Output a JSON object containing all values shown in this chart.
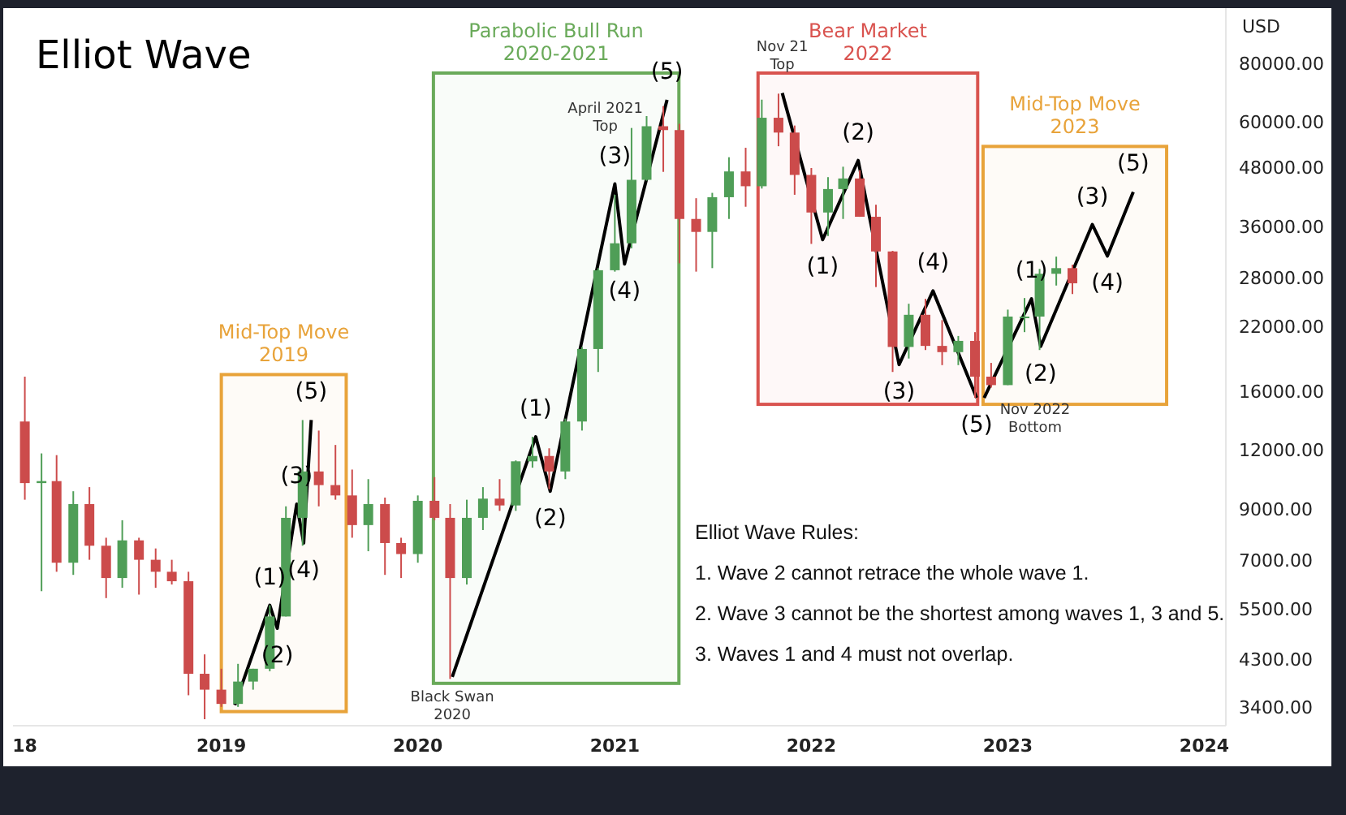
{
  "chart_data": {
    "type": "candlestick",
    "title": "Elliot Wave",
    "ylabel": "USD",
    "log": true,
    "grid": false,
    "xlim": [
      "2017-12-10",
      "2024-02-10"
    ],
    "xticks": [
      {
        "value": "2018",
        "label": "18"
      },
      "2019",
      "2020",
      "2021",
      "2022",
      "2023",
      "2024"
    ],
    "ylim": [
      3100,
      105000
    ],
    "yticks": [
      {
        "value": 3400,
        "label": "3400.00"
      },
      {
        "value": 4300,
        "label": "4300.00"
      },
      {
        "value": 5500,
        "label": "5500.00"
      },
      {
        "value": 7000,
        "label": "7000.00"
      },
      {
        "value": 9000,
        "label": "9000.00"
      },
      {
        "value": 12000,
        "label": "12000.00"
      },
      {
        "value": 16000,
        "label": "16000.00"
      },
      {
        "value": 22000,
        "label": "22000.00"
      },
      {
        "value": 28000,
        "label": "28000.00"
      },
      {
        "value": 36000,
        "label": "36000.00"
      },
      {
        "value": 48000,
        "label": "48000.00"
      },
      {
        "value": 60000,
        "label": "60000.00"
      },
      {
        "value": 80000,
        "label": "80000.00"
      }
    ],
    "x": [
      "2018-01",
      "2018-02",
      "2018-03",
      "2018-04",
      "2018-05",
      "2018-06",
      "2018-07",
      "2018-08",
      "2018-09",
      "2018-10",
      "2018-11",
      "2018-12",
      "2019-01",
      "2019-02",
      "2019-03",
      "2019-04",
      "2019-05",
      "2019-06",
      "2019-07",
      "2019-08",
      "2019-09",
      "2019-10",
      "2019-11",
      "2019-12",
      "2020-01",
      "2020-02",
      "2020-03",
      "2020-04",
      "2020-05",
      "2020-06",
      "2020-07",
      "2020-08",
      "2020-09",
      "2020-10",
      "2020-11",
      "2020-12",
      "2021-01",
      "2021-02",
      "2021-03",
      "2021-04",
      "2021-05",
      "2021-06",
      "2021-07",
      "2021-08",
      "2021-09",
      "2021-10",
      "2021-11",
      "2021-12",
      "2022-01",
      "2022-02",
      "2022-03",
      "2022-04",
      "2022-05",
      "2022-06",
      "2022-07",
      "2022-08",
      "2022-09",
      "2022-10",
      "2022-11",
      "2022-12",
      "2023-01",
      "2023-02",
      "2023-03",
      "2023-04",
      "2023-05"
    ],
    "ohlc": [
      [
        13800,
        17200,
        9400,
        10200
      ],
      [
        10200,
        11800,
        6000,
        10300
      ],
      [
        10300,
        11700,
        6600,
        6900
      ],
      [
        6900,
        9800,
        6500,
        9200
      ],
      [
        9200,
        10000,
        7000,
        7500
      ],
      [
        7500,
        7800,
        5800,
        6400
      ],
      [
        6400,
        8500,
        6100,
        7700
      ],
      [
        7700,
        7800,
        5900,
        7000
      ],
      [
        7000,
        7400,
        6100,
        6600
      ],
      [
        6600,
        7000,
        6200,
        6300
      ],
      [
        6300,
        6600,
        3600,
        4000
      ],
      [
        4000,
        4400,
        3200,
        3700
      ],
      [
        3700,
        4100,
        3400,
        3450
      ],
      [
        3450,
        4200,
        3400,
        3850
      ],
      [
        3850,
        4100,
        3700,
        4100
      ],
      [
        4100,
        5600,
        4050,
        5300
      ],
      [
        5300,
        9100,
        5300,
        8600
      ],
      [
        8600,
        13900,
        7500,
        10800
      ],
      [
        10800,
        13200,
        9100,
        10100
      ],
      [
        10100,
        12300,
        9400,
        9600
      ],
      [
        9600,
        10900,
        7800,
        8300
      ],
      [
        8300,
        10400,
        7300,
        9200
      ],
      [
        9200,
        9500,
        6500,
        7600
      ],
      [
        7600,
        7800,
        6400,
        7200
      ],
      [
        7200,
        9600,
        6900,
        9350
      ],
      [
        9350,
        10500,
        8500,
        8600
      ],
      [
        8600,
        9200,
        3900,
        6400
      ],
      [
        6400,
        9400,
        6200,
        8600
      ],
      [
        8600,
        10000,
        8100,
        9450
      ],
      [
        9450,
        10400,
        8900,
        9140
      ],
      [
        9140,
        11400,
        8900,
        11350
      ],
      [
        11350,
        12800,
        11000,
        11650
      ],
      [
        11650,
        12100,
        9900,
        10800
      ],
      [
        10800,
        14000,
        10400,
        13800
      ],
      [
        13800,
        19900,
        13200,
        19700
      ],
      [
        19700,
        29300,
        17600,
        29000
      ],
      [
        29000,
        42000,
        28800,
        33100
      ],
      [
        33100,
        58300,
        32300,
        45200
      ],
      [
        45200,
        61800,
        45000,
        58800
      ],
      [
        58800,
        64900,
        47000,
        57700
      ],
      [
        57700,
        59500,
        30000,
        37300
      ],
      [
        37300,
        41300,
        28800,
        35000
      ],
      [
        35000,
        42400,
        29300,
        41500
      ],
      [
        41500,
        50500,
        37300,
        47100
      ],
      [
        47100,
        52900,
        39600,
        43800
      ],
      [
        43800,
        67000,
        43300,
        61300
      ],
      [
        61300,
        69000,
        53300,
        57000
      ],
      [
        57000,
        59000,
        42000,
        46300
      ],
      [
        46300,
        47900,
        33000,
        38500
      ],
      [
        38500,
        45800,
        34300,
        43200
      ],
      [
        43200,
        48200,
        37300,
        45500
      ],
      [
        45500,
        47400,
        37700,
        37700
      ],
      [
        37700,
        40000,
        26700,
        31800
      ],
      [
        31800,
        31900,
        17600,
        19900
      ],
      [
        19900,
        24600,
        18800,
        23300
      ],
      [
        23300,
        25200,
        19600,
        20000
      ],
      [
        20000,
        22700,
        18200,
        19400
      ],
      [
        19400,
        21000,
        18200,
        20500
      ],
      [
        20500,
        21400,
        15500,
        17200
      ],
      [
        17200,
        18400,
        16300,
        16500
      ],
      [
        16500,
        23900,
        16500,
        23100
      ],
      [
        23100,
        25300,
        21400,
        23100
      ],
      [
        23100,
        29200,
        19600,
        28500
      ],
      [
        28500,
        31000,
        26900,
        29300
      ],
      [
        29300,
        29800,
        25800,
        27200
      ]
    ],
    "series": [
      {
        "type": "line",
        "color": "#000000",
        "x": [
          "2019-01-26",
          "2019-04-01",
          "2019-04-15",
          "2019-05-21",
          "2019-06-03",
          "2019-06-17"
        ],
        "values": [
          3430,
          5600,
          5000,
          9200,
          7600,
          13900
        ]
      },
      {
        "type": "line",
        "color": "#000000",
        "x": [
          "2020-03-05",
          "2020-08-07",
          "2020-09-03",
          "2021-01-01",
          "2021-01-19",
          "2021-04-08"
        ],
        "values": [
          3940,
          12800,
          9800,
          44300,
          29900,
          66900
        ]
      },
      {
        "type": "line",
        "color": "#000000",
        "x": [
          "2021-11-08",
          "2022-01-22",
          "2022-03-29",
          "2022-06-13",
          "2022-08-15",
          "2022-11-04"
        ],
        "values": [
          69200,
          33700,
          49700,
          18250,
          26200,
          15500
        ]
      },
      {
        "type": "line",
        "color": "#000000",
        "x": [
          "2022-11-18",
          "2023-02-14",
          "2023-03-03",
          "2023-06-07",
          "2023-07-05",
          "2023-08-22"
        ],
        "values": [
          15500,
          25200,
          19950,
          36300,
          31100,
          42600
        ]
      }
    ],
    "bands": [
      {
        "axis": "x",
        "from": "2019-01-01",
        "to": "2019-08-21",
        "label": "Mid-Top Move 2019",
        "color": "#e8a33a"
      },
      {
        "axis": "x",
        "from": "2020-01-30",
        "to": "2021-04-30",
        "label": "Parabolic Bull Run 2020-2021",
        "color": "#6aaa5a"
      },
      {
        "axis": "x",
        "from": "2021-09-24",
        "to": "2022-11-06",
        "label": "Bear Market 2022",
        "color": "#d9534f"
      },
      {
        "axis": "x",
        "from": "2022-11-16",
        "to": "2023-10-23",
        "label": "Mid-Top Move 2023",
        "color": "#e8a33a"
      }
    ],
    "annotations": [
      {
        "text": "(1)",
        "x": "2019-04-01",
        "y": 5600
      },
      {
        "text": "(2)",
        "x": "2019-04-15",
        "y": 5000
      },
      {
        "text": "(3)",
        "x": "2019-05-21",
        "y": 9200
      },
      {
        "text": "(4)",
        "x": "2019-06-03",
        "y": 7600
      },
      {
        "text": "(5)",
        "x": "2019-06-17",
        "y": 13900
      },
      {
        "text": "Black Swan 2020",
        "x": "2020-03-05",
        "y": 3940
      },
      {
        "text": "(1)",
        "x": "2020-08-07",
        "y": 12800
      },
      {
        "text": "(2)",
        "x": "2020-09-03",
        "y": 9800
      },
      {
        "text": "(3)",
        "x": "2021-01-01",
        "y": 44300
      },
      {
        "text": "(4)",
        "x": "2021-01-19",
        "y": 29900
      },
      {
        "text": "(5)",
        "x": "2021-04-08",
        "y": 66900
      },
      {
        "text": "April 2021 Top",
        "x": "2021-04-08",
        "y": 66900
      },
      {
        "text": "Nov 21 Top",
        "x": "2021-11-08",
        "y": 69200
      },
      {
        "text": "(1)",
        "x": "2022-01-22",
        "y": 33700
      },
      {
        "text": "(2)",
        "x": "2022-03-29",
        "y": 49700
      },
      {
        "text": "(3)",
        "x": "2022-06-13",
        "y": 18250
      },
      {
        "text": "(4)",
        "x": "2022-08-15",
        "y": 26200
      },
      {
        "text": "(5)",
        "x": "2022-11-04",
        "y": 15500
      },
      {
        "text": "Nov 2022 Bottom",
        "x": "2022-11-04",
        "y": 15500
      },
      {
        "text": "(1)",
        "x": "2023-02-14",
        "y": 25200
      },
      {
        "text": "(2)",
        "x": "2023-03-03",
        "y": 19950
      },
      {
        "text": "(3)",
        "x": "2023-06-07",
        "y": 36300
      },
      {
        "text": "(4)",
        "x": "2023-07-05",
        "y": 31100
      },
      {
        "text": "(5)",
        "x": "2023-08-22",
        "y": 42600
      },
      "Elliot Wave Rules:",
      "1. Wave 2 cannot retrace the whole wave 1.",
      "2. Wave 3 cannot be the shortest among waves 1, 3 and 5.",
      "3. Waves 1 and 4 must not overlap."
    ]
  }
}
